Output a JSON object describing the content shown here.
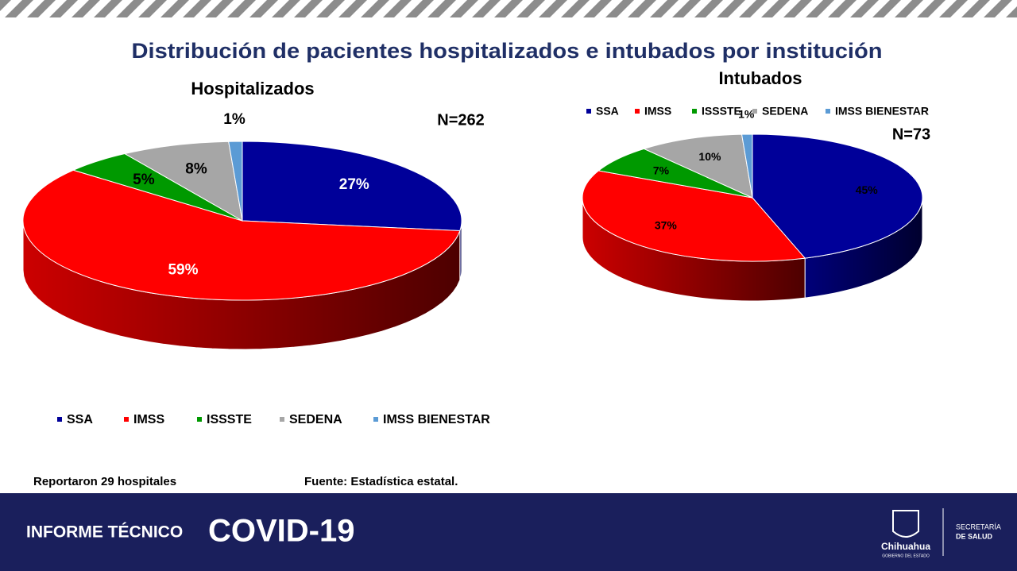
{
  "header": {
    "title": "Distribución de pacientes hospitalizados e intubados por institución"
  },
  "chart_data": [
    {
      "type": "pie",
      "title": "Hospitalizados",
      "annotation": "N=262",
      "categories": [
        "SSA",
        "IMSS",
        "ISSSTE",
        "SEDENA",
        "IMSS BIENESTAR"
      ],
      "values": [
        27,
        59,
        5,
        8,
        1
      ],
      "value_labels": [
        "27%",
        "59%",
        "5%",
        "8%",
        "1%"
      ],
      "colors": [
        "#000099",
        "#ff0000",
        "#009900",
        "#a6a6a6",
        "#5b9bd5"
      ],
      "legend": "bottom"
    },
    {
      "type": "pie",
      "title": "Intubados",
      "annotation": "N=73",
      "categories": [
        "SSA",
        "IMSS",
        "ISSSTE",
        "SEDENA",
        "IMSS BIENESTAR"
      ],
      "values": [
        45,
        37,
        7,
        10,
        1
      ],
      "value_labels": [
        "45%",
        "37%",
        "7%",
        "10%",
        "1%"
      ],
      "colors": [
        "#000099",
        "#ff0000",
        "#009900",
        "#a6a6a6",
        "#5b9bd5"
      ],
      "legend": "top"
    }
  ],
  "footer": {
    "note": "Reportaron 29 hospitales",
    "source": "Fuente: Estadística estatal.",
    "report": "INFORME TÉCNICO",
    "topic": "COVID-19",
    "state": "Chihuahua",
    "government": "GOBIERNO DEL ESTADO",
    "ministry_1": "SECRETARÍA",
    "ministry_2": "DE SALUD"
  }
}
